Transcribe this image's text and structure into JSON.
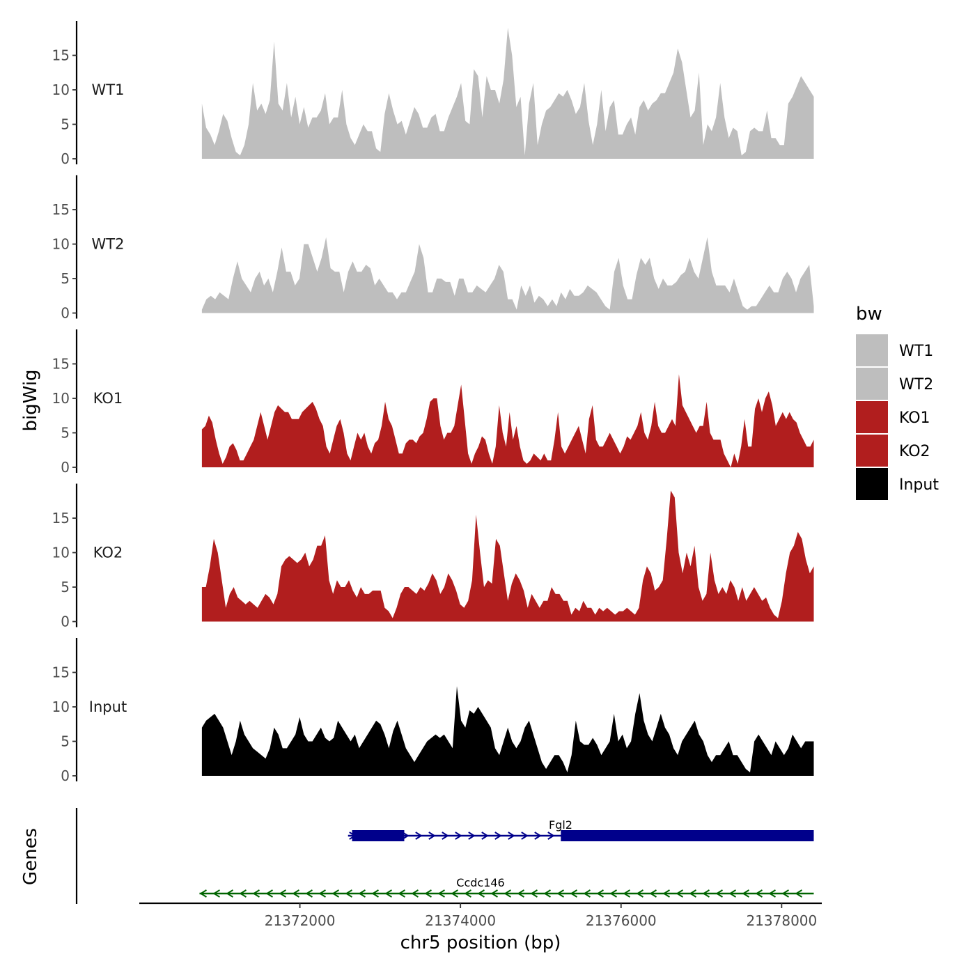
{
  "chart_data": {
    "type": "area",
    "ylabel": "bigWig",
    "genes_label": "Genes",
    "xlabel": "chr5 position (bp)",
    "xlim": [
      21370000,
      21378500
    ],
    "xticks": [
      21372000,
      21374000,
      21376000,
      21378000
    ],
    "xtick_labels": [
      "21372000",
      "21374000",
      "21376000",
      "21378000"
    ],
    "ylim": [
      0,
      20
    ],
    "yticks": [
      0,
      5,
      10,
      15
    ],
    "ytick_labels": [
      "0",
      "5",
      "10",
      "15"
    ],
    "x_start": 21370780,
    "x_end": 21378400,
    "legend": {
      "title": "bw",
      "position": "right"
    },
    "tracks": [
      {
        "name": "WT1",
        "color": "#bebebe",
        "values": [
          8,
          4.5,
          3.5,
          2,
          4,
          6.5,
          5.5,
          3,
          1,
          0.5,
          2,
          5,
          11,
          7,
          8,
          6.5,
          8.5,
          17,
          8,
          7,
          11,
          6,
          9,
          5,
          7.5,
          4.5,
          6,
          6,
          7,
          9.5,
          5,
          6,
          6,
          10,
          5,
          3,
          2,
          3.5,
          5,
          4,
          4,
          1.5,
          1,
          6.5,
          9.5,
          7,
          5,
          5.5,
          3.5,
          5.5,
          7.5,
          6.5,
          4.5,
          4.5,
          6,
          6.5,
          4,
          4,
          6,
          7.5,
          9,
          11,
          5.5,
          5,
          13,
          12,
          6,
          12,
          10,
          10,
          8,
          11.5,
          19,
          15,
          7.5,
          9,
          0.5,
          8,
          11,
          2,
          5,
          7,
          7.5,
          8.5,
          9.5,
          9,
          10,
          8.5,
          6.5,
          7.5,
          11,
          5.5,
          2,
          5,
          10,
          4,
          7.5,
          8.5,
          3.5,
          3.5,
          5,
          6,
          3.5,
          7.5,
          8.5,
          7,
          8,
          8.5,
          9.5,
          9.5,
          11,
          12.5,
          16,
          14,
          10,
          6,
          7,
          12.5,
          2,
          5,
          4,
          6,
          11,
          6,
          3,
          4.5,
          4,
          0.5,
          1,
          4,
          4.5,
          4,
          4,
          7,
          3,
          3,
          2,
          2,
          8,
          9,
          10.5,
          12,
          11,
          10,
          9
        ]
      },
      {
        "name": "WT2",
        "color": "#bebebe",
        "values": [
          0.5,
          2,
          2.5,
          2,
          3,
          2.5,
          2,
          5,
          7.5,
          5,
          4,
          3,
          5,
          6,
          4,
          5,
          3,
          6,
          9.5,
          6,
          6,
          4,
          5,
          10,
          10,
          8,
          6,
          8,
          11,
          6.5,
          6,
          6,
          3,
          6,
          7.5,
          6,
          6,
          7,
          6.5,
          4,
          5,
          4,
          3,
          3,
          2,
          3,
          3,
          4.5,
          6,
          10,
          8,
          3,
          3,
          5,
          5,
          4.5,
          4.5,
          2.5,
          5,
          5,
          3,
          3,
          4,
          3.5,
          3,
          4,
          5,
          7,
          6,
          2,
          2,
          0.5,
          4,
          2.5,
          4,
          1.5,
          2.5,
          2,
          1,
          2,
          1,
          3,
          2,
          3.5,
          2.5,
          2.5,
          3,
          4,
          3.5,
          3,
          2,
          1,
          0.5,
          6,
          8,
          4,
          2,
          2,
          5.5,
          8,
          7,
          8,
          5,
          3.5,
          5,
          4,
          4,
          4.5,
          5.5,
          6,
          8,
          6,
          5,
          8,
          11,
          6,
          4,
          4,
          4,
          3,
          5,
          3,
          1,
          0.5,
          1,
          1,
          2,
          3,
          4,
          3,
          3,
          5,
          6,
          5,
          3,
          5,
          6,
          7,
          1
        ]
      },
      {
        "name": "KO1",
        "color": "#b11e1e",
        "values": [
          5.5,
          6,
          7.5,
          6.5,
          4,
          2,
          0.5,
          1.5,
          3,
          3.5,
          2.5,
          1,
          1,
          2,
          3,
          4,
          6,
          8,
          6,
          4,
          6,
          8,
          9,
          8.5,
          8,
          8,
          7,
          7,
          7,
          8,
          8.5,
          9,
          9.5,
          8.5,
          7,
          6,
          3,
          2,
          4,
          6,
          7,
          5,
          2,
          1,
          3,
          5,
          4,
          5,
          3,
          2,
          3.5,
          4,
          6,
          9.5,
          7,
          6,
          4,
          2,
          2,
          3.5,
          4,
          4,
          3.5,
          4.5,
          5,
          7,
          9.5,
          10,
          10,
          6,
          4,
          5,
          5,
          6,
          9,
          12,
          7,
          2,
          0.5,
          2,
          3,
          4.5,
          4,
          2,
          0.5,
          3,
          9,
          5,
          3,
          8,
          4,
          6,
          3,
          1,
          0.5,
          1,
          2,
          1.5,
          1,
          2,
          1,
          1,
          4,
          8,
          3,
          2,
          3,
          4,
          5,
          6,
          4,
          2,
          7,
          9,
          4,
          3,
          3,
          4,
          5,
          4,
          3,
          2,
          3,
          4.5,
          4,
          5,
          6,
          8,
          5,
          4,
          6,
          9.5,
          6,
          5,
          5,
          6,
          7,
          6,
          13.5,
          9,
          8,
          7,
          6,
          5,
          6,
          6,
          9.5,
          5,
          4,
          4,
          4,
          2,
          1,
          0,
          2,
          0.5,
          3,
          7,
          3,
          3,
          8.5,
          10,
          8,
          10,
          11,
          9,
          6,
          7,
          8,
          7,
          8,
          7,
          6.5,
          5,
          4,
          3,
          3,
          4
        ]
      },
      {
        "name": "KO2",
        "color": "#b11e1e",
        "values": [
          5,
          5,
          8,
          12,
          10,
          6,
          2,
          4,
          5,
          3.5,
          3,
          2.5,
          3,
          2.5,
          2,
          3,
          4,
          3.5,
          2.5,
          4,
          8,
          9,
          9.5,
          9,
          8.5,
          9,
          10,
          8,
          9,
          11,
          11,
          12.5,
          6,
          4,
          6,
          5,
          5,
          6,
          4.5,
          3.5,
          5,
          4,
          4,
          4.5,
          4.5,
          4.5,
          2,
          1.5,
          0.5,
          2,
          4,
          5,
          5,
          4.5,
          4,
          5,
          4.5,
          5.5,
          7,
          6,
          4,
          5,
          7,
          6,
          4.5,
          2.5,
          2,
          3,
          6,
          15.5,
          10,
          5,
          6,
          5.5,
          12,
          11,
          7,
          3,
          5.5,
          7,
          6,
          4.5,
          2,
          4,
          3,
          2,
          3,
          3,
          5,
          4,
          4,
          3,
          3,
          1,
          2,
          1.5,
          3,
          2,
          2,
          1,
          2,
          1.5,
          2,
          1.5,
          1,
          1.5,
          1.5,
          2,
          1.5,
          1,
          2,
          6,
          8,
          7,
          4.5,
          5,
          6,
          12,
          19,
          18,
          10,
          7,
          10,
          8,
          11,
          5,
          3,
          4,
          10,
          6,
          4,
          5,
          4,
          6,
          5,
          3,
          5,
          3,
          4,
          5,
          4,
          3,
          3.5,
          2,
          1,
          0.5,
          3,
          7,
          10,
          11,
          13,
          12,
          9,
          7,
          8
        ]
      },
      {
        "name": "Input",
        "color": "#000000",
        "values": [
          7,
          8,
          8.5,
          9,
          8,
          7,
          5,
          3,
          5,
          8,
          6,
          5,
          4,
          3.5,
          3,
          2.5,
          4,
          7,
          6,
          4,
          4,
          5,
          6,
          8.5,
          6,
          5,
          5,
          6,
          7,
          5.5,
          5,
          5.5,
          8,
          7,
          6,
          5,
          6,
          4,
          5,
          6,
          7,
          8,
          7.5,
          6,
          4,
          6.5,
          8,
          6,
          4,
          3,
          2,
          3,
          4,
          5,
          5.5,
          6,
          5.5,
          6,
          5,
          4,
          13,
          8,
          7,
          9.5,
          9,
          10,
          9,
          8,
          7,
          4,
          3,
          5,
          7,
          5,
          4,
          5,
          7,
          8,
          6,
          4,
          2,
          1,
          2,
          3,
          3,
          2,
          0.5,
          3,
          8,
          5,
          4.5,
          4.5,
          5.5,
          4.5,
          3,
          4,
          5,
          9,
          5,
          6,
          4,
          5,
          9,
          12,
          8,
          6,
          5,
          7,
          9,
          7,
          6,
          4,
          3,
          5,
          6,
          7,
          8,
          6,
          5,
          3,
          2,
          3,
          3,
          4,
          5,
          3,
          3,
          2,
          1,
          0.5,
          5,
          6,
          5,
          4,
          3,
          5,
          4,
          3,
          4,
          6,
          5,
          4,
          5,
          5,
          5
        ]
      }
    ],
    "genes": [
      {
        "name": "Fgl2",
        "strand": "+",
        "color": "#00008b",
        "start": 21372600,
        "end": 21378400,
        "exons": [
          [
            21372650,
            21373300
          ],
          [
            21375250,
            21378400
          ]
        ]
      },
      {
        "name": "Ccdc146",
        "strand": "-",
        "color": "#006400",
        "start": 21370750,
        "end": 21378400,
        "exons": []
      }
    ]
  }
}
